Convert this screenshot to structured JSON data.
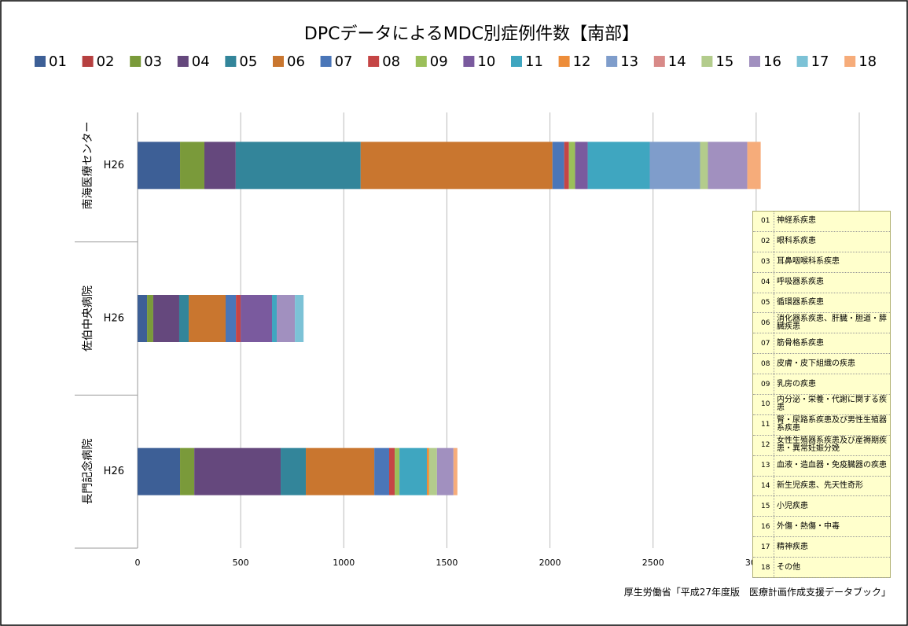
{
  "chart_data": {
    "type": "stacked-hbar",
    "title": "DPCデータによるMDC別症例件数【南部】",
    "groups": [
      "南海医療センター",
      "佐伯中央病院",
      "長門記念病院"
    ],
    "categories": [
      "H26",
      "H26",
      "H26"
    ],
    "series": [
      {
        "name": "01",
        "color": "#3d5f96",
        "values": [
          206,
          46,
          206
        ]
      },
      {
        "name": "02",
        "color": "#b64040",
        "values": [
          0,
          0,
          0
        ]
      },
      {
        "name": "03",
        "color": "#7a9a3a",
        "values": [
          118,
          30,
          69
        ]
      },
      {
        "name": "04",
        "color": "#65487d",
        "values": [
          152,
          126,
          419
        ]
      },
      {
        "name": "05",
        "color": "#33859a",
        "values": [
          606,
          46,
          122
        ]
      },
      {
        "name": "06",
        "color": "#c9762f",
        "values": [
          930,
          179,
          332
        ]
      },
      {
        "name": "07",
        "color": "#4a76b8",
        "values": [
          57,
          50,
          72
        ]
      },
      {
        "name": "08",
        "color": "#c54545",
        "values": [
          23,
          23,
          27
        ]
      },
      {
        "name": "09",
        "color": "#9bbf5a",
        "values": [
          30,
          0,
          23
        ]
      },
      {
        "name": "10",
        "color": "#7a5a9e",
        "values": [
          61,
          152,
          0
        ]
      },
      {
        "name": "11",
        "color": "#3fa6c0",
        "values": [
          301,
          23,
          133
        ]
      },
      {
        "name": "12",
        "color": "#ed8d3a",
        "values": [
          0,
          0,
          11
        ]
      },
      {
        "name": "13",
        "color": "#7f9dcb",
        "values": [
          244,
          0,
          0
        ]
      },
      {
        "name": "14",
        "color": "#d88a88",
        "values": [
          0,
          0,
          0
        ]
      },
      {
        "name": "15",
        "color": "#b3cc8c",
        "values": [
          38,
          0,
          38
        ]
      },
      {
        "name": "16",
        "color": "#a190bf",
        "values": [
          191,
          88,
          80
        ]
      },
      {
        "name": "17",
        "color": "#7cc2d6",
        "values": [
          0,
          42,
          0
        ]
      },
      {
        "name": "18",
        "color": "#f6ac7a",
        "values": [
          65,
          0,
          19
        ]
      }
    ],
    "xlim": [
      0,
      3500
    ],
    "xticks": [
      0,
      500,
      1000,
      1500,
      2000,
      2500,
      3000,
      3500
    ],
    "grid": true,
    "legend": "top",
    "note": [
      {
        "code": "01",
        "label": "神経系疾患"
      },
      {
        "code": "02",
        "label": "眼科系疾患"
      },
      {
        "code": "03",
        "label": "耳鼻咽喉科系疾患"
      },
      {
        "code": "04",
        "label": "呼吸器系疾患"
      },
      {
        "code": "05",
        "label": "循環器系疾患"
      },
      {
        "code": "06",
        "label": "消化器系疾患、肝臓・胆道・膵臓疾患"
      },
      {
        "code": "07",
        "label": "筋骨格系疾患"
      },
      {
        "code": "08",
        "label": "皮膚・皮下組織の疾患"
      },
      {
        "code": "09",
        "label": "乳房の疾患"
      },
      {
        "code": "10",
        "label": "内分泌・栄養・代謝に関する疾患"
      },
      {
        "code": "11",
        "label": "腎・尿路系疾患及び男性生殖器系疾患"
      },
      {
        "code": "12",
        "label": "女性生殖器系疾患及び産褥期疾患・異常妊娠分娩"
      },
      {
        "code": "13",
        "label": "血液・造血器・免疫臓器の疾患"
      },
      {
        "code": "14",
        "label": "新生児疾患、先天性奇形"
      },
      {
        "code": "15",
        "label": "小児疾患"
      },
      {
        "code": "16",
        "label": "外傷・熱傷・中毒"
      },
      {
        "code": "17",
        "label": "精神疾患"
      },
      {
        "code": "18",
        "label": "その他"
      }
    ],
    "source": "厚生労働省「平成27年度版　医療計画作成支援データブック」"
  }
}
